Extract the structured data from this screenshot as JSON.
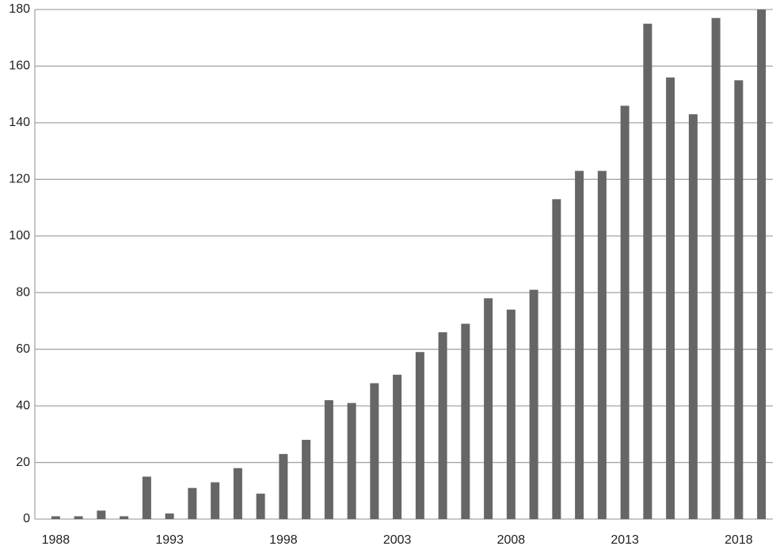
{
  "chart_data": {
    "type": "bar",
    "categories": [
      "1988",
      null,
      null,
      null,
      null,
      "1993",
      null,
      null,
      null,
      null,
      "1998",
      null,
      null,
      null,
      null,
      "2003",
      null,
      null,
      null,
      null,
      "2008",
      null,
      null,
      null,
      null,
      "2013",
      null,
      null,
      null,
      null,
      "2018",
      null
    ],
    "values": [
      1,
      1,
      3,
      1,
      15,
      2,
      11,
      13,
      18,
      9,
      23,
      28,
      42,
      41,
      48,
      51,
      59,
      66,
      69,
      78,
      74,
      81,
      113,
      123,
      123,
      146,
      175,
      156,
      143,
      177,
      155,
      180
    ],
    "color": "#666666",
    "ylim": [
      0,
      180
    ],
    "yticks": [
      0,
      20,
      40,
      60,
      80,
      100,
      120,
      140,
      160,
      180
    ],
    "grid": true
  }
}
